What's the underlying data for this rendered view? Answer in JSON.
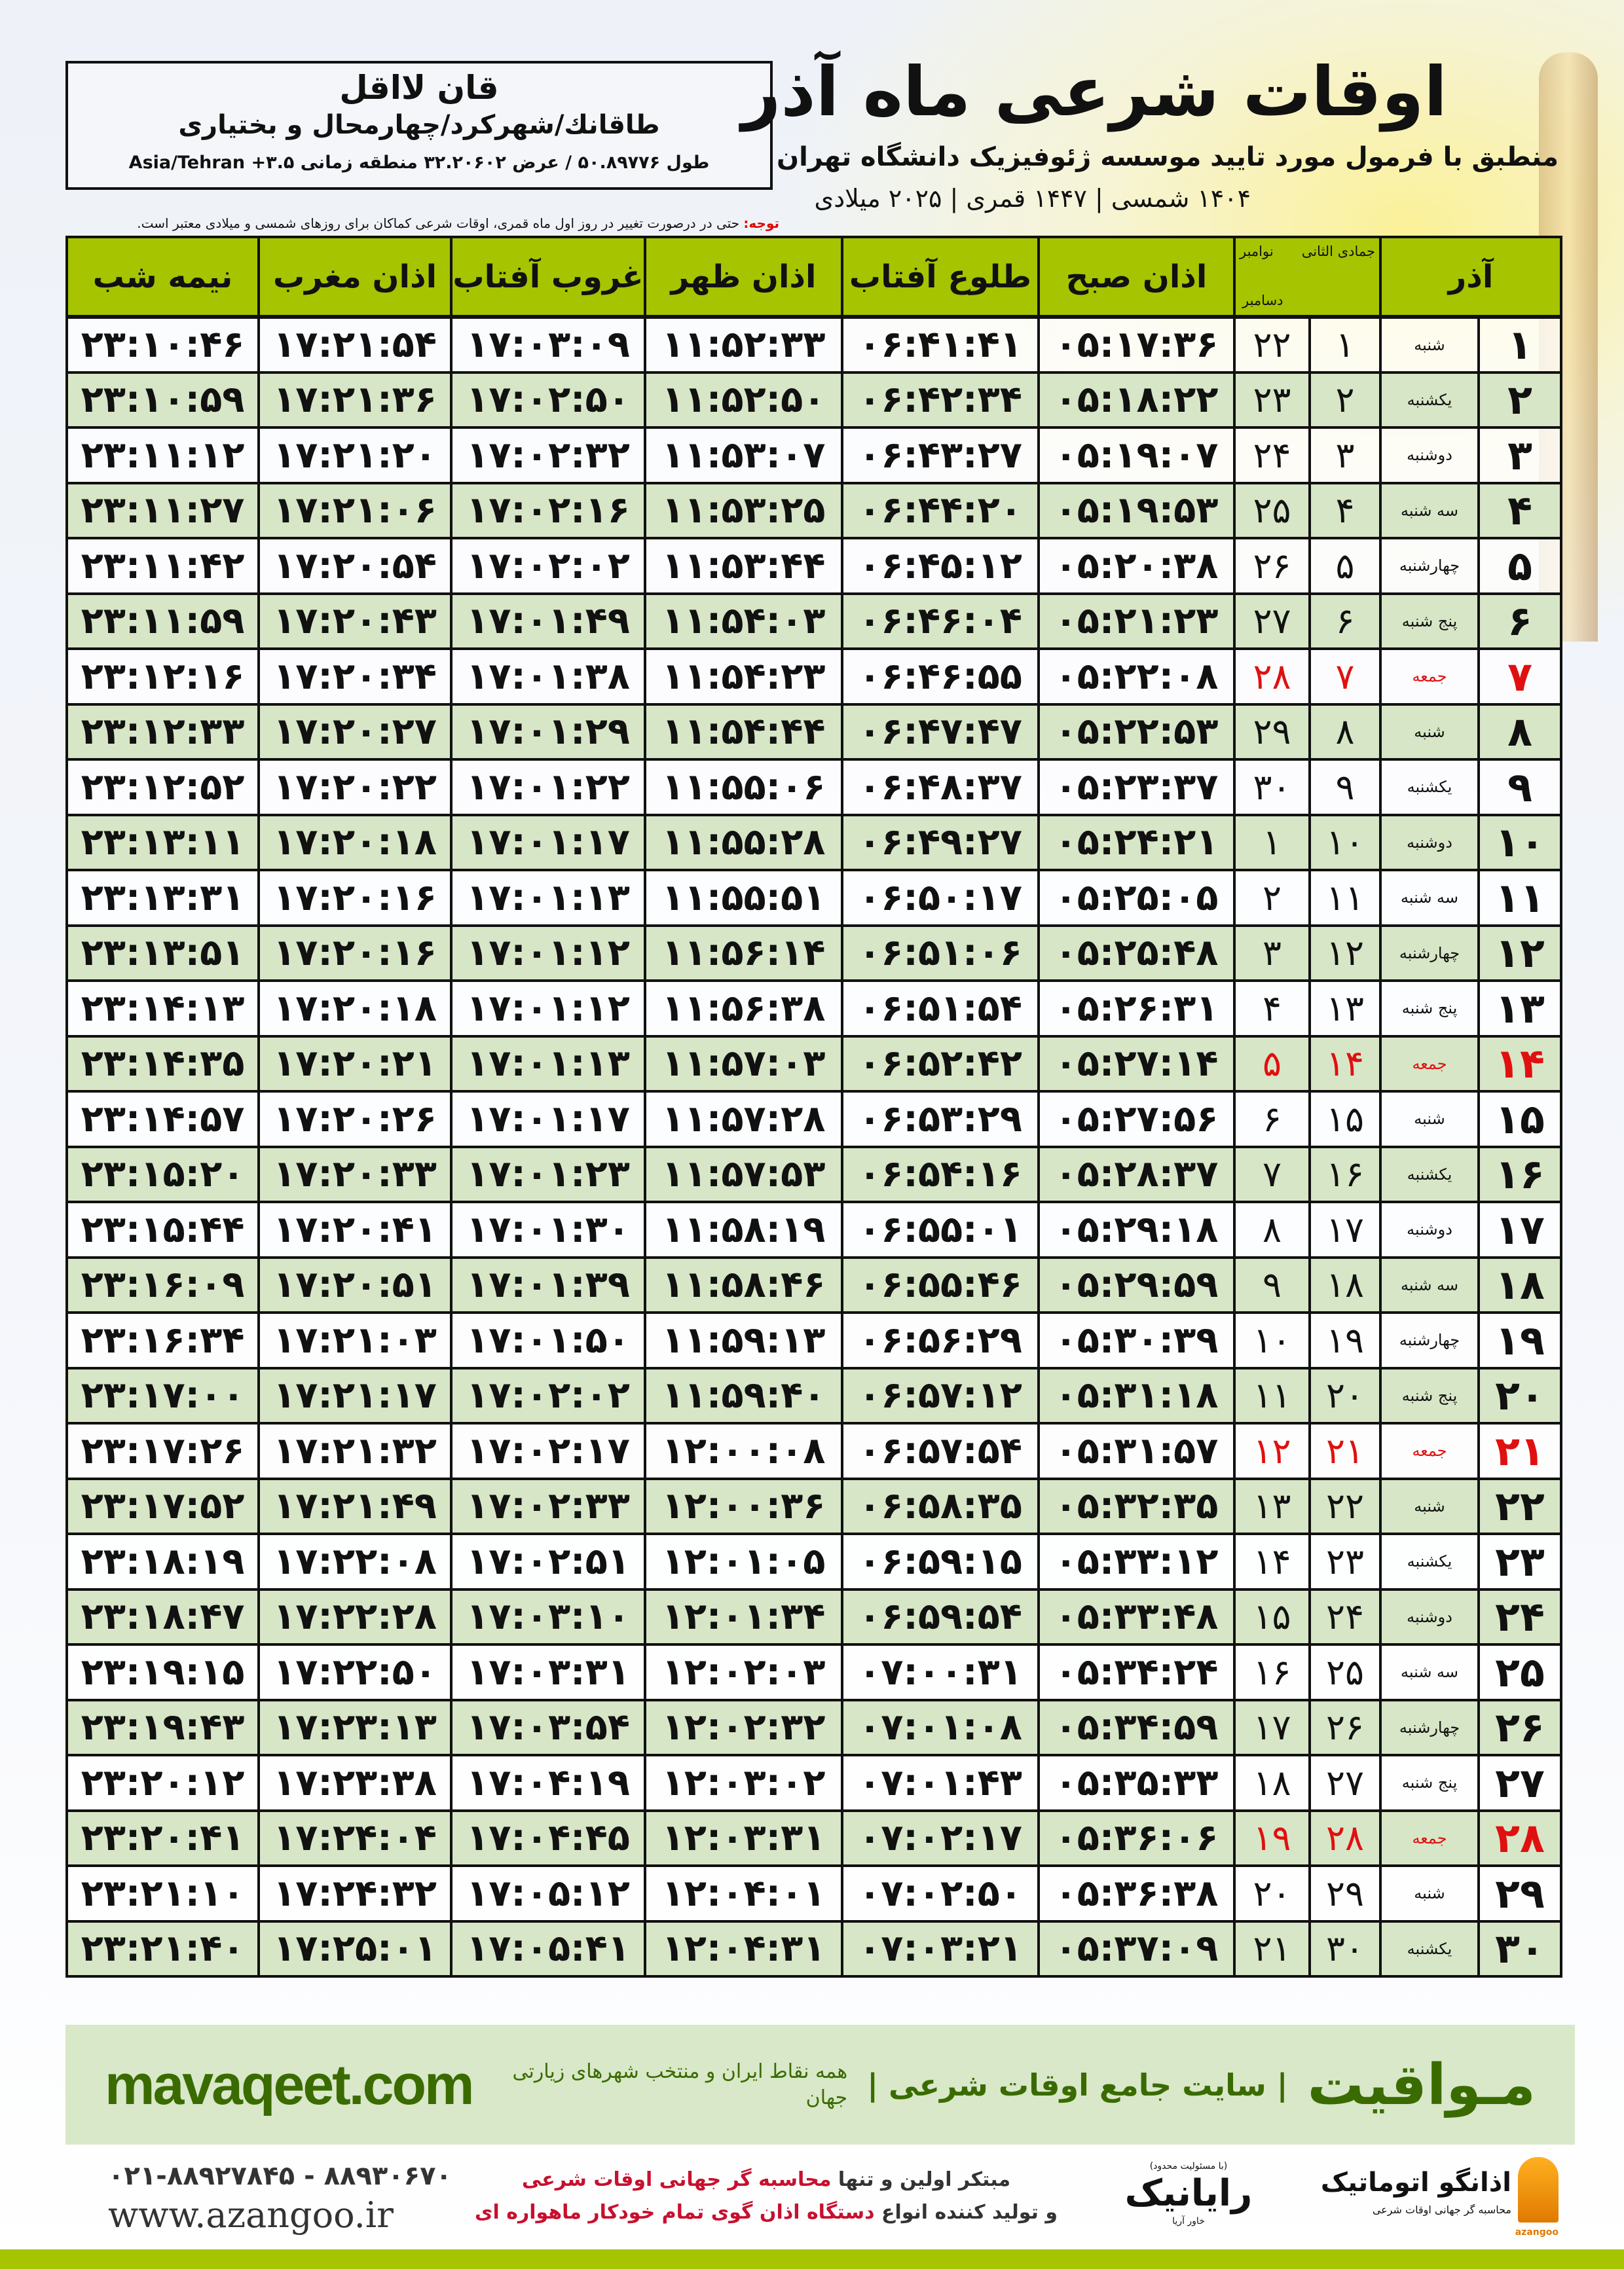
{
  "title": "اوقات شرعی ماه آذر",
  "subtitle": "منطبق با فرمول مورد تایید موسسه ژئوفیزیک دانشگاه تهران",
  "dateline": "۱۴۰۴ شمسی | ۱۴۴۷ قمری | ۲۰۲۵ میلادی",
  "location": {
    "village": "قان لااقل",
    "path": "طاقانك/شهركرد/چهارمحال و بختیاری",
    "coords": "طول ۵۰.۸۹۷۷۶ / عرض ۳۲.۲۰۶۰۲ منطقه زمانی Asia/Tehran +۳.۵"
  },
  "note": {
    "label": "توجه:",
    "text": " حتی در درصورت تغییر در روز اول ماه قمری، اوقات شرعی کماکان برای روزهای شمسی و میلادی معتبر است."
  },
  "colors": {
    "header": "#a6c400",
    "row_alt": "#d7e6c6",
    "friday": "#e01010",
    "brand": "#3a6b00"
  },
  "table": {
    "headers": {
      "day": "آذر",
      "hijri_month": "جمادی الثانی",
      "greg_month_1": "نوامبر",
      "greg_month_2": "دسامبر",
      "fajr": "اذان صبح",
      "sunrise": "طلوع آفتاب",
      "dhuhr": "اذان ظهر",
      "sunset": "غروب آفتاب",
      "maghrib": "اذان مغرب",
      "midnight": "نیمه شب"
    },
    "rows": [
      {
        "day": "۱",
        "weekday": "شنبه",
        "hijri": "۱",
        "greg": "۲۲",
        "fajr": "۰۵:۱۷:۳۶",
        "sunrise": "۰۶:۴۱:۴۱",
        "dhuhr": "۱۱:۵۲:۳۳",
        "sunset": "۱۷:۰۳:۰۹",
        "maghrib": "۱۷:۲۱:۵۴",
        "midnight": "۲۳:۱۰:۴۶"
      },
      {
        "day": "۲",
        "weekday": "یکشنبه",
        "hijri": "۲",
        "greg": "۲۳",
        "fajr": "۰۵:۱۸:۲۲",
        "sunrise": "۰۶:۴۲:۳۴",
        "dhuhr": "۱۱:۵۲:۵۰",
        "sunset": "۱۷:۰۲:۵۰",
        "maghrib": "۱۷:۲۱:۳۶",
        "midnight": "۲۳:۱۰:۵۹"
      },
      {
        "day": "۳",
        "weekday": "دوشنبه",
        "hijri": "۳",
        "greg": "۲۴",
        "fajr": "۰۵:۱۹:۰۷",
        "sunrise": "۰۶:۴۳:۲۷",
        "dhuhr": "۱۱:۵۳:۰۷",
        "sunset": "۱۷:۰۲:۳۲",
        "maghrib": "۱۷:۲۱:۲۰",
        "midnight": "۲۳:۱۱:۱۲"
      },
      {
        "day": "۴",
        "weekday": "سه شنبه",
        "hijri": "۴",
        "greg": "۲۵",
        "fajr": "۰۵:۱۹:۵۳",
        "sunrise": "۰۶:۴۴:۲۰",
        "dhuhr": "۱۱:۵۳:۲۵",
        "sunset": "۱۷:۰۲:۱۶",
        "maghrib": "۱۷:۲۱:۰۶",
        "midnight": "۲۳:۱۱:۲۷"
      },
      {
        "day": "۵",
        "weekday": "چهارشنبه",
        "hijri": "۵",
        "greg": "۲۶",
        "fajr": "۰۵:۲۰:۳۸",
        "sunrise": "۰۶:۴۵:۱۲",
        "dhuhr": "۱۱:۵۳:۴۴",
        "sunset": "۱۷:۰۲:۰۲",
        "maghrib": "۱۷:۲۰:۵۴",
        "midnight": "۲۳:۱۱:۴۲"
      },
      {
        "day": "۶",
        "weekday": "پنج شنبه",
        "hijri": "۶",
        "greg": "۲۷",
        "fajr": "۰۵:۲۱:۲۳",
        "sunrise": "۰۶:۴۶:۰۴",
        "dhuhr": "۱۱:۵۴:۰۳",
        "sunset": "۱۷:۰۱:۴۹",
        "maghrib": "۱۷:۲۰:۴۳",
        "midnight": "۲۳:۱۱:۵۹"
      },
      {
        "day": "۷",
        "weekday": "جمعه",
        "hijri": "۷",
        "greg": "۲۸",
        "fajr": "۰۵:۲۲:۰۸",
        "sunrise": "۰۶:۴۶:۵۵",
        "dhuhr": "۱۱:۵۴:۲۳",
        "sunset": "۱۷:۰۱:۳۸",
        "maghrib": "۱۷:۲۰:۳۴",
        "midnight": "۲۳:۱۲:۱۶",
        "friday": true
      },
      {
        "day": "۸",
        "weekday": "شنبه",
        "hijri": "۸",
        "greg": "۲۹",
        "fajr": "۰۵:۲۲:۵۳",
        "sunrise": "۰۶:۴۷:۴۷",
        "dhuhr": "۱۱:۵۴:۴۴",
        "sunset": "۱۷:۰۱:۲۹",
        "maghrib": "۱۷:۲۰:۲۷",
        "midnight": "۲۳:۱۲:۳۳"
      },
      {
        "day": "۹",
        "weekday": "یکشنبه",
        "hijri": "۹",
        "greg": "۳۰",
        "fajr": "۰۵:۲۳:۳۷",
        "sunrise": "۰۶:۴۸:۳۷",
        "dhuhr": "۱۱:۵۵:۰۶",
        "sunset": "۱۷:۰۱:۲۲",
        "maghrib": "۱۷:۲۰:۲۲",
        "midnight": "۲۳:۱۲:۵۲"
      },
      {
        "day": "۱۰",
        "weekday": "دوشنبه",
        "hijri": "۱۰",
        "greg": "۱",
        "fajr": "۰۵:۲۴:۲۱",
        "sunrise": "۰۶:۴۹:۲۷",
        "dhuhr": "۱۱:۵۵:۲۸",
        "sunset": "۱۷:۰۱:۱۷",
        "maghrib": "۱۷:۲۰:۱۸",
        "midnight": "۲۳:۱۳:۱۱"
      },
      {
        "day": "۱۱",
        "weekday": "سه شنبه",
        "hijri": "۱۱",
        "greg": "۲",
        "fajr": "۰۵:۲۵:۰۵",
        "sunrise": "۰۶:۵۰:۱۷",
        "dhuhr": "۱۱:۵۵:۵۱",
        "sunset": "۱۷:۰۱:۱۳",
        "maghrib": "۱۷:۲۰:۱۶",
        "midnight": "۲۳:۱۳:۳۱"
      },
      {
        "day": "۱۲",
        "weekday": "چهارشنبه",
        "hijri": "۱۲",
        "greg": "۳",
        "fajr": "۰۵:۲۵:۴۸",
        "sunrise": "۰۶:۵۱:۰۶",
        "dhuhr": "۱۱:۵۶:۱۴",
        "sunset": "۱۷:۰۱:۱۲",
        "maghrib": "۱۷:۲۰:۱۶",
        "midnight": "۲۳:۱۳:۵۱"
      },
      {
        "day": "۱۳",
        "weekday": "پنج شنبه",
        "hijri": "۱۳",
        "greg": "۴",
        "fajr": "۰۵:۲۶:۳۱",
        "sunrise": "۰۶:۵۱:۵۴",
        "dhuhr": "۱۱:۵۶:۳۸",
        "sunset": "۱۷:۰۱:۱۲",
        "maghrib": "۱۷:۲۰:۱۸",
        "midnight": "۲۳:۱۴:۱۳"
      },
      {
        "day": "۱۴",
        "weekday": "جمعه",
        "hijri": "۱۴",
        "greg": "۵",
        "fajr": "۰۵:۲۷:۱۴",
        "sunrise": "۰۶:۵۲:۴۲",
        "dhuhr": "۱۱:۵۷:۰۳",
        "sunset": "۱۷:۰۱:۱۳",
        "maghrib": "۱۷:۲۰:۲۱",
        "midnight": "۲۳:۱۴:۳۵",
        "friday": true
      },
      {
        "day": "۱۵",
        "weekday": "شنبه",
        "hijri": "۱۵",
        "greg": "۶",
        "fajr": "۰۵:۲۷:۵۶",
        "sunrise": "۰۶:۵۳:۲۹",
        "dhuhr": "۱۱:۵۷:۲۸",
        "sunset": "۱۷:۰۱:۱۷",
        "maghrib": "۱۷:۲۰:۲۶",
        "midnight": "۲۳:۱۴:۵۷"
      },
      {
        "day": "۱۶",
        "weekday": "یکشنبه",
        "hijri": "۱۶",
        "greg": "۷",
        "fajr": "۰۵:۲۸:۳۷",
        "sunrise": "۰۶:۵۴:۱۶",
        "dhuhr": "۱۱:۵۷:۵۳",
        "sunset": "۱۷:۰۱:۲۳",
        "maghrib": "۱۷:۲۰:۳۳",
        "midnight": "۲۳:۱۵:۲۰"
      },
      {
        "day": "۱۷",
        "weekday": "دوشنبه",
        "hijri": "۱۷",
        "greg": "۸",
        "fajr": "۰۵:۲۹:۱۸",
        "sunrise": "۰۶:۵۵:۰۱",
        "dhuhr": "۱۱:۵۸:۱۹",
        "sunset": "۱۷:۰۱:۳۰",
        "maghrib": "۱۷:۲۰:۴۱",
        "midnight": "۲۳:۱۵:۴۴"
      },
      {
        "day": "۱۸",
        "weekday": "سه شنبه",
        "hijri": "۱۸",
        "greg": "۹",
        "fajr": "۰۵:۲۹:۵۹",
        "sunrise": "۰۶:۵۵:۴۶",
        "dhuhr": "۱۱:۵۸:۴۶",
        "sunset": "۱۷:۰۱:۳۹",
        "maghrib": "۱۷:۲۰:۵۱",
        "midnight": "۲۳:۱۶:۰۹"
      },
      {
        "day": "۱۹",
        "weekday": "چهارشنبه",
        "hijri": "۱۹",
        "greg": "۱۰",
        "fajr": "۰۵:۳۰:۳۹",
        "sunrise": "۰۶:۵۶:۲۹",
        "dhuhr": "۱۱:۵۹:۱۳",
        "sunset": "۱۷:۰۱:۵۰",
        "maghrib": "۱۷:۲۱:۰۳",
        "midnight": "۲۳:۱۶:۳۴"
      },
      {
        "day": "۲۰",
        "weekday": "پنج شنبه",
        "hijri": "۲۰",
        "greg": "۱۱",
        "fajr": "۰۵:۳۱:۱۸",
        "sunrise": "۰۶:۵۷:۱۲",
        "dhuhr": "۱۱:۵۹:۴۰",
        "sunset": "۱۷:۰۲:۰۲",
        "maghrib": "۱۷:۲۱:۱۷",
        "midnight": "۲۳:۱۷:۰۰"
      },
      {
        "day": "۲۱",
        "weekday": "جمعه",
        "hijri": "۲۱",
        "greg": "۱۲",
        "fajr": "۰۵:۳۱:۵۷",
        "sunrise": "۰۶:۵۷:۵۴",
        "dhuhr": "۱۲:۰۰:۰۸",
        "sunset": "۱۷:۰۲:۱۷",
        "maghrib": "۱۷:۲۱:۳۲",
        "midnight": "۲۳:۱۷:۲۶",
        "friday": true
      },
      {
        "day": "۲۲",
        "weekday": "شنبه",
        "hijri": "۲۲",
        "greg": "۱۳",
        "fajr": "۰۵:۳۲:۳۵",
        "sunrise": "۰۶:۵۸:۳۵",
        "dhuhr": "۱۲:۰۰:۳۶",
        "sunset": "۱۷:۰۲:۳۳",
        "maghrib": "۱۷:۲۱:۴۹",
        "midnight": "۲۳:۱۷:۵۲"
      },
      {
        "day": "۲۳",
        "weekday": "یکشنبه",
        "hijri": "۲۳",
        "greg": "۱۴",
        "fajr": "۰۵:۳۳:۱۲",
        "sunrise": "۰۶:۵۹:۱۵",
        "dhuhr": "۱۲:۰۱:۰۵",
        "sunset": "۱۷:۰۲:۵۱",
        "maghrib": "۱۷:۲۲:۰۸",
        "midnight": "۲۳:۱۸:۱۹"
      },
      {
        "day": "۲۴",
        "weekday": "دوشنبه",
        "hijri": "۲۴",
        "greg": "۱۵",
        "fajr": "۰۵:۳۳:۴۸",
        "sunrise": "۰۶:۵۹:۵۴",
        "dhuhr": "۱۲:۰۱:۳۴",
        "sunset": "۱۷:۰۳:۱۰",
        "maghrib": "۱۷:۲۲:۲۸",
        "midnight": "۲۳:۱۸:۴۷"
      },
      {
        "day": "۲۵",
        "weekday": "سه شنبه",
        "hijri": "۲۵",
        "greg": "۱۶",
        "fajr": "۰۵:۳۴:۲۴",
        "sunrise": "۰۷:۰۰:۳۱",
        "dhuhr": "۱۲:۰۲:۰۳",
        "sunset": "۱۷:۰۳:۳۱",
        "maghrib": "۱۷:۲۲:۵۰",
        "midnight": "۲۳:۱۹:۱۵"
      },
      {
        "day": "۲۶",
        "weekday": "چهارشنبه",
        "hijri": "۲۶",
        "greg": "۱۷",
        "fajr": "۰۵:۳۴:۵۹",
        "sunrise": "۰۷:۰۱:۰۸",
        "dhuhr": "۱۲:۰۲:۳۲",
        "sunset": "۱۷:۰۳:۵۴",
        "maghrib": "۱۷:۲۳:۱۳",
        "midnight": "۲۳:۱۹:۴۳"
      },
      {
        "day": "۲۷",
        "weekday": "پنج شنبه",
        "hijri": "۲۷",
        "greg": "۱۸",
        "fajr": "۰۵:۳۵:۳۳",
        "sunrise": "۰۷:۰۱:۴۳",
        "dhuhr": "۱۲:۰۳:۰۲",
        "sunset": "۱۷:۰۴:۱۹",
        "maghrib": "۱۷:۲۳:۳۸",
        "midnight": "۲۳:۲۰:۱۲"
      },
      {
        "day": "۲۸",
        "weekday": "جمعه",
        "hijri": "۲۸",
        "greg": "۱۹",
        "fajr": "۰۵:۳۶:۰۶",
        "sunrise": "۰۷:۰۲:۱۷",
        "dhuhr": "۱۲:۰۳:۳۱",
        "sunset": "۱۷:۰۴:۴۵",
        "maghrib": "۱۷:۲۴:۰۴",
        "midnight": "۲۳:۲۰:۴۱",
        "friday": true
      },
      {
        "day": "۲۹",
        "weekday": "شنبه",
        "hijri": "۲۹",
        "greg": "۲۰",
        "fajr": "۰۵:۳۶:۳۸",
        "sunrise": "۰۷:۰۲:۵۰",
        "dhuhr": "۱۲:۰۴:۰۱",
        "sunset": "۱۷:۰۵:۱۲",
        "maghrib": "۱۷:۲۴:۳۲",
        "midnight": "۲۳:۲۱:۱۰"
      },
      {
        "day": "۳۰",
        "weekday": "یکشنبه",
        "hijri": "۳۰",
        "greg": "۲۱",
        "fajr": "۰۵:۳۷:۰۹",
        "sunrise": "۰۷:۰۳:۲۱",
        "dhuhr": "۱۲:۰۴:۳۱",
        "sunset": "۱۷:۰۵:۴۱",
        "maghrib": "۱۷:۲۵:۰۱",
        "midnight": "۲۳:۲۱:۴۰"
      }
    ]
  },
  "banner": {
    "brand": "مـواقیت",
    "tagline": "| سایت جامع اوقات شرعی |",
    "tagline2": "همه نقاط ایران و منتخب شهرهای زیارتی جهان",
    "site": "mavaqeet.com"
  },
  "footer": {
    "phone": "۰۲۱-۸۸۹۲۷۸۴۵ - ۸۸۹۳۰۶۷۰",
    "website": "www.azangoo.ir",
    "promo1_a": "مبتکر اولین و تنها ",
    "promo1_b": "محاسبه گر جهانی اوقات شرعی",
    "promo2_a": "و تولید کننده انواع ",
    "promo2_b": "دستگاه اذان گوی تمام خودکار ماهواره ای",
    "rayanik_small": "(با مسئولیت محدود)",
    "rayanik": "رایانیک",
    "rayanik_sub": "خاور آریا",
    "azangoo_title": "اذانگو اتوماتیک",
    "azangoo_sub": "محاسبه گر جهانی اوقات شرعی",
    "azangoo_en": "azangoo"
  }
}
